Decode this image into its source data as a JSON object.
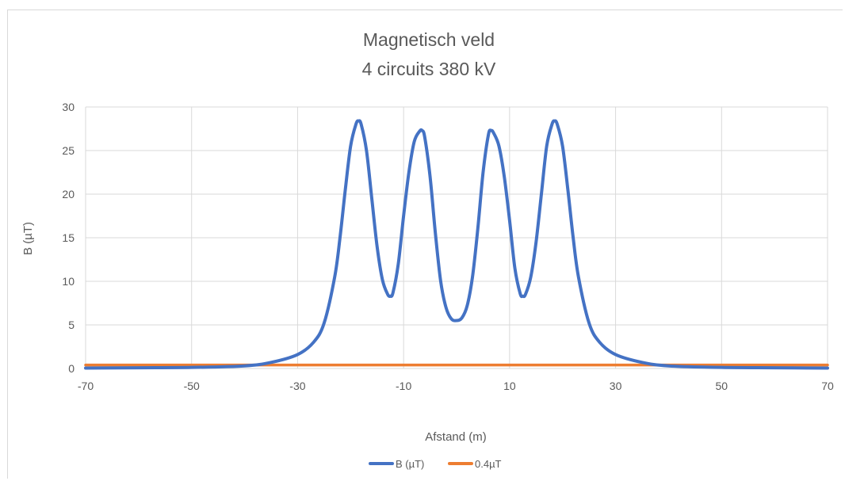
{
  "chart_data": {
    "type": "line",
    "title": "Magnetisch veld",
    "subtitle": "4 circuits 380 kV",
    "xlabel": "Afstand (m)",
    "ylabel": "B (µT)",
    "xlim": [
      -70,
      70
    ],
    "ylim": [
      0,
      30
    ],
    "x_ticks": [
      -70,
      -50,
      -30,
      -10,
      10,
      30,
      50,
      70
    ],
    "y_ticks": [
      0,
      5,
      10,
      15,
      20,
      25,
      30
    ],
    "grid": true,
    "legend_position": "bottom",
    "series": [
      {
        "name": "B (µT)",
        "color": "#4472C4",
        "x": [
          -70,
          -60,
          -50,
          -40,
          -35,
          -30,
          -27,
          -25,
          -23,
          -22,
          -21,
          -20,
          -19,
          -18.5,
          -18,
          -17,
          -16,
          -15,
          -14,
          -13,
          -12.5,
          -12,
          -11,
          -10,
          -9,
          -8,
          -7,
          -6.5,
          -6,
          -5,
          -4,
          -3,
          -2,
          -1,
          0,
          1,
          2,
          3,
          4,
          5,
          6,
          6.5,
          7,
          8,
          9,
          10,
          11,
          12,
          12.5,
          13,
          14,
          15,
          16,
          17,
          18,
          18.5,
          19,
          20,
          21,
          22,
          23,
          25,
          27,
          30,
          35,
          40,
          50,
          60,
          70
        ],
        "y": [
          0.05,
          0.08,
          0.12,
          0.3,
          0.7,
          1.6,
          3.0,
          5.2,
          10.5,
          15.0,
          20.5,
          25.5,
          28.0,
          28.4,
          28.0,
          25.0,
          19.5,
          14.0,
          10.2,
          8.5,
          8.3,
          8.7,
          12.0,
          17.5,
          22.5,
          26.0,
          27.2,
          27.3,
          26.5,
          22.0,
          15.5,
          10.0,
          7.0,
          5.7,
          5.5,
          5.8,
          7.2,
          10.5,
          16.0,
          22.5,
          26.8,
          27.3,
          27.0,
          25.5,
          22.0,
          17.0,
          11.5,
          8.6,
          8.3,
          8.5,
          10.5,
          14.5,
          20.0,
          25.5,
          28.0,
          28.4,
          28.0,
          25.5,
          20.5,
          15.0,
          10.5,
          5.2,
          3.0,
          1.6,
          0.7,
          0.3,
          0.12,
          0.08,
          0.05
        ]
      },
      {
        "name": "0.4µT",
        "color": "#ED7D31",
        "x": [
          -70,
          70
        ],
        "y": [
          0.4,
          0.4
        ]
      }
    ]
  }
}
